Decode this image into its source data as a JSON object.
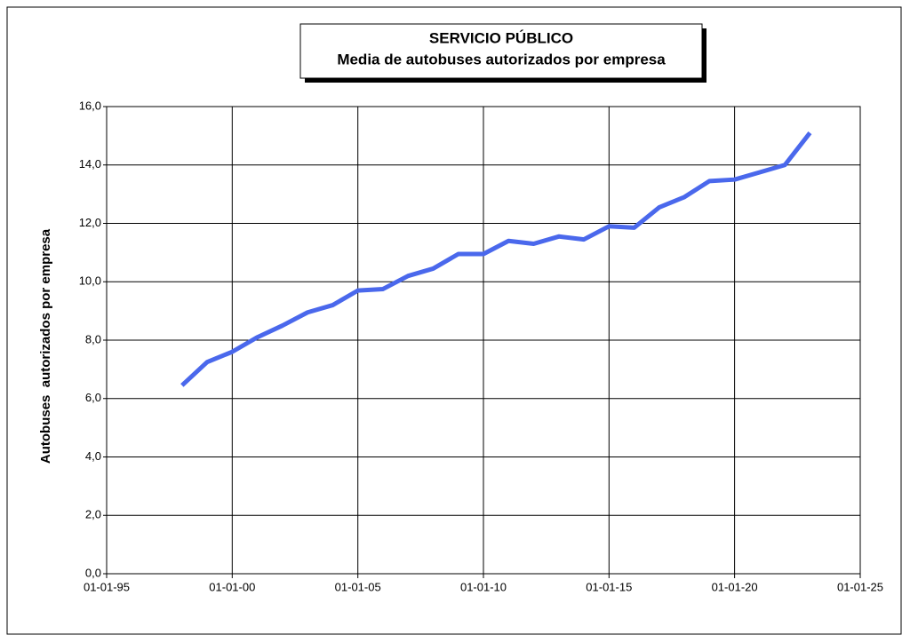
{
  "chart_data": {
    "type": "line",
    "title": "SERVICIO PÚBLICO",
    "subtitle": "Media de autobuses autorizados por empresa",
    "y_label": "Autobuses  autorizados por empresa",
    "x": [
      "1998-01-01",
      "1999-01-01",
      "2000-01-01",
      "2001-01-01",
      "2002-01-01",
      "2003-01-01",
      "2004-01-01",
      "2005-01-01",
      "2006-01-01",
      "2007-01-01",
      "2008-01-01",
      "2009-01-01",
      "2010-01-01",
      "2011-01-01",
      "2012-01-01",
      "2013-01-01",
      "2014-01-01",
      "2015-01-01",
      "2016-01-01",
      "2017-01-01",
      "2018-01-01",
      "2019-01-01",
      "2020-01-01",
      "2021-01-01",
      "2022-01-01",
      "2023-01-01"
    ],
    "values": [
      6.45,
      7.25,
      7.6,
      8.1,
      8.5,
      8.95,
      9.2,
      9.7,
      9.75,
      10.2,
      10.45,
      10.95,
      10.95,
      11.4,
      11.3,
      11.55,
      11.45,
      11.9,
      11.85,
      12.55,
      12.9,
      13.45,
      13.5,
      13.75,
      14.0,
      15.1
    ],
    "color": "#4a68ec",
    "xlim": [
      "1995-01-01",
      "2025-01-01"
    ],
    "xticks": [
      {
        "value": "1995-01-01",
        "label": "01-01-95"
      },
      {
        "value": "2000-01-01",
        "label": "01-01-00"
      },
      {
        "value": "2005-01-01",
        "label": "01-01-05"
      },
      {
        "value": "2010-01-01",
        "label": "01-01-10"
      },
      {
        "value": "2015-01-01",
        "label": "01-01-15"
      },
      {
        "value": "2020-01-01",
        "label": "01-01-20"
      },
      {
        "value": "2025-01-01",
        "label": "01-01-25"
      }
    ],
    "ylim": [
      0,
      16
    ],
    "yticks": [
      {
        "value": 0,
        "label": "0,0"
      },
      {
        "value": 2,
        "label": "2,0"
      },
      {
        "value": 4,
        "label": "4,0"
      },
      {
        "value": 6,
        "label": "6,0"
      },
      {
        "value": 8,
        "label": "8,0"
      },
      {
        "value": 10,
        "label": "10,0"
      },
      {
        "value": 12,
        "label": "12,0"
      },
      {
        "value": 14,
        "label": "14,0"
      },
      {
        "value": 16,
        "label": "16,0"
      }
    ],
    "grid": true
  }
}
